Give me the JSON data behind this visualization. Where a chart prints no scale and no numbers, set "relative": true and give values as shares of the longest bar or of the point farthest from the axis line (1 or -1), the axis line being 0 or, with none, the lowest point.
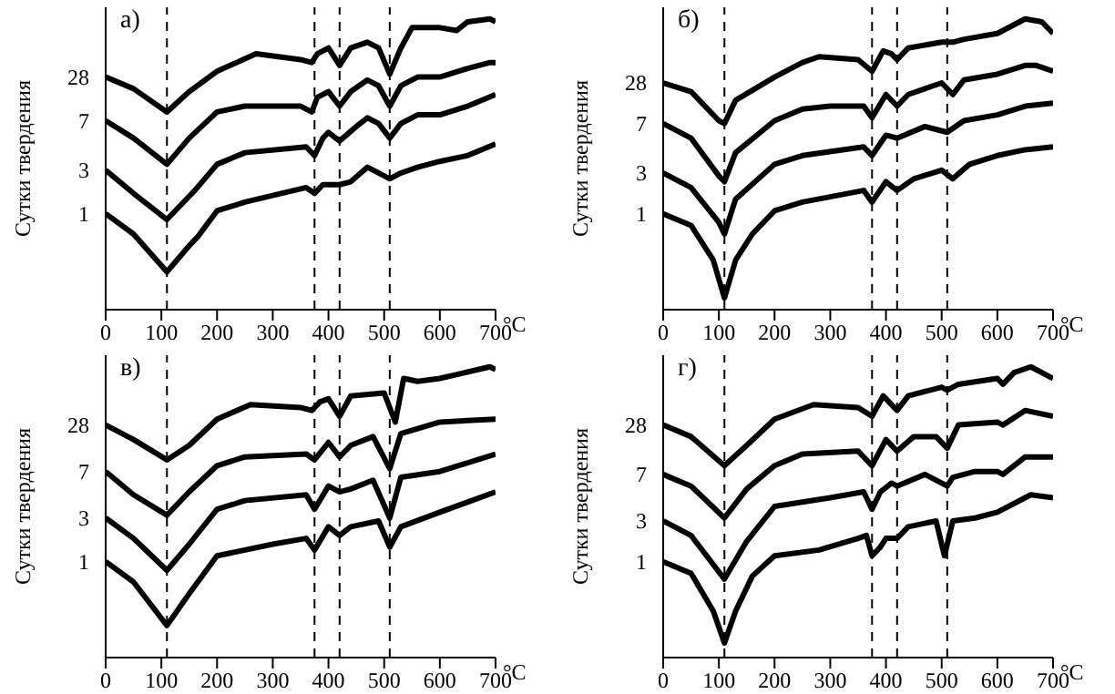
{
  "chart_data": [
    {
      "type": "line",
      "title": "а)",
      "xlabel": "°C",
      "ylabel": "Сутки твердения",
      "relative": true,
      "tick_labels": "x",
      "xlim": [
        0,
        700
      ],
      "xticks": [
        0,
        100,
        200,
        300,
        400,
        500,
        600,
        700
      ],
      "marker": "none",
      "line_style": "solid",
      "ref_lines": [
        {
          "axis": "x",
          "value": 110,
          "line_style": "dashed"
        },
        {
          "axis": "x",
          "value": 375,
          "line_style": "dashed"
        },
        {
          "axis": "x",
          "value": 420,
          "line_style": "dashed"
        },
        {
          "axis": "x",
          "value": 510,
          "line_style": "dashed"
        }
      ],
      "series": [
        {
          "name": "28",
          "color": "#000000",
          "x": [
            0,
            50,
            110,
            150,
            200,
            270,
            350,
            370,
            380,
            400,
            420,
            440,
            470,
            490,
            510,
            530,
            550,
            600,
            630,
            650,
            690,
            700
          ],
          "values": [
            0.8,
            0.76,
            0.68,
            0.75,
            0.82,
            0.88,
            0.86,
            0.85,
            0.88,
            0.9,
            0.84,
            0.9,
            0.92,
            0.9,
            0.81,
            0.9,
            0.97,
            0.97,
            0.96,
            0.99,
            1.0,
            0.99
          ]
        },
        {
          "name": "7",
          "color": "#000000",
          "x": [
            0,
            50,
            110,
            150,
            200,
            250,
            350,
            370,
            380,
            400,
            420,
            440,
            470,
            490,
            510,
            530,
            560,
            600,
            650,
            690,
            700
          ],
          "values": [
            0.65,
            0.59,
            0.5,
            0.59,
            0.68,
            0.7,
            0.7,
            0.68,
            0.73,
            0.75,
            0.7,
            0.75,
            0.79,
            0.77,
            0.7,
            0.77,
            0.8,
            0.8,
            0.83,
            0.85,
            0.85
          ]
        },
        {
          "name": "3",
          "color": "#000000",
          "x": [
            0,
            50,
            110,
            150,
            160,
            200,
            250,
            360,
            375,
            390,
            400,
            420,
            450,
            470,
            490,
            510,
            530,
            560,
            600,
            650,
            700
          ],
          "values": [
            0.48,
            0.4,
            0.31,
            0.39,
            0.41,
            0.5,
            0.54,
            0.56,
            0.53,
            0.59,
            0.61,
            0.58,
            0.63,
            0.66,
            0.64,
            0.59,
            0.64,
            0.67,
            0.67,
            0.7,
            0.74
          ]
        },
        {
          "name": "1",
          "color": "#000000",
          "x": [
            0,
            50,
            110,
            150,
            165,
            200,
            250,
            360,
            375,
            390,
            420,
            440,
            470,
            490,
            510,
            530,
            560,
            600,
            650,
            700
          ],
          "values": [
            0.33,
            0.26,
            0.13,
            0.22,
            0.25,
            0.34,
            0.37,
            0.42,
            0.4,
            0.43,
            0.43,
            0.44,
            0.49,
            0.47,
            0.45,
            0.47,
            0.49,
            0.51,
            0.53,
            0.57
          ]
        }
      ]
    },
    {
      "type": "line",
      "title": "б)",
      "xlabel": "°C",
      "ylabel": "Сутки твердения",
      "relative": true,
      "tick_labels": "x",
      "xlim": [
        0,
        700
      ],
      "xticks": [
        0,
        100,
        200,
        300,
        400,
        500,
        600,
        700
      ],
      "marker": "none",
      "line_style": "solid",
      "ref_lines": [
        {
          "axis": "x",
          "value": 110,
          "line_style": "dashed"
        },
        {
          "axis": "x",
          "value": 375,
          "line_style": "dashed"
        },
        {
          "axis": "x",
          "value": 420,
          "line_style": "dashed"
        },
        {
          "axis": "x",
          "value": 510,
          "line_style": "dashed"
        }
      ],
      "series": [
        {
          "name": "28",
          "color": "#000000",
          "x": [
            0,
            50,
            100,
            110,
            130,
            200,
            250,
            280,
            350,
            375,
            395,
            410,
            420,
            440,
            500,
            520,
            540,
            600,
            650,
            680,
            700
          ],
          "values": [
            0.78,
            0.75,
            0.65,
            0.64,
            0.72,
            0.8,
            0.85,
            0.87,
            0.86,
            0.82,
            0.89,
            0.88,
            0.86,
            0.9,
            0.92,
            0.92,
            0.93,
            0.95,
            1.0,
            0.99,
            0.95
          ]
        },
        {
          "name": "7",
          "color": "#000000",
          "x": [
            0,
            50,
            100,
            110,
            130,
            200,
            250,
            300,
            360,
            375,
            400,
            420,
            440,
            500,
            520,
            540,
            600,
            650,
            670,
            700
          ],
          "values": [
            0.64,
            0.59,
            0.46,
            0.44,
            0.54,
            0.65,
            0.69,
            0.7,
            0.7,
            0.66,
            0.74,
            0.7,
            0.74,
            0.78,
            0.74,
            0.79,
            0.81,
            0.84,
            0.84,
            0.82
          ]
        },
        {
          "name": "3",
          "color": "#000000",
          "x": [
            0,
            50,
            100,
            110,
            130,
            200,
            250,
            360,
            375,
            400,
            420,
            470,
            510,
            540,
            600,
            650,
            700
          ],
          "values": [
            0.47,
            0.42,
            0.3,
            0.26,
            0.38,
            0.5,
            0.53,
            0.56,
            0.53,
            0.6,
            0.59,
            0.63,
            0.61,
            0.65,
            0.67,
            0.7,
            0.71
          ]
        },
        {
          "name": "1",
          "color": "#000000",
          "x": [
            0,
            50,
            90,
            110,
            130,
            160,
            200,
            250,
            360,
            375,
            400,
            420,
            450,
            500,
            520,
            550,
            600,
            650,
            700
          ],
          "values": [
            0.33,
            0.29,
            0.17,
            0.04,
            0.17,
            0.26,
            0.34,
            0.37,
            0.41,
            0.37,
            0.44,
            0.41,
            0.45,
            0.48,
            0.45,
            0.5,
            0.53,
            0.55,
            0.56
          ]
        }
      ]
    },
    {
      "type": "line",
      "title": "в)",
      "xlabel": "°C",
      "ylabel": "Сутки твердения",
      "relative": true,
      "tick_labels": "x",
      "xlim": [
        0,
        700
      ],
      "xticks": [
        0,
        100,
        200,
        300,
        400,
        500,
        600,
        700
      ],
      "marker": "none",
      "line_style": "solid",
      "ref_lines": [
        {
          "axis": "x",
          "value": 110,
          "line_style": "dashed"
        },
        {
          "axis": "x",
          "value": 375,
          "line_style": "dashed"
        },
        {
          "axis": "x",
          "value": 420,
          "line_style": "dashed"
        },
        {
          "axis": "x",
          "value": 510,
          "line_style": "dashed"
        }
      ],
      "series": [
        {
          "name": "28",
          "color": "#000000",
          "x": [
            0,
            50,
            110,
            150,
            200,
            260,
            350,
            370,
            385,
            400,
            420,
            440,
            500,
            510,
            520,
            535,
            560,
            600,
            690,
            700
          ],
          "values": [
            0.8,
            0.75,
            0.68,
            0.73,
            0.82,
            0.87,
            0.86,
            0.85,
            0.88,
            0.89,
            0.83,
            0.9,
            0.91,
            0.86,
            0.81,
            0.96,
            0.95,
            0.96,
            1.0,
            0.99
          ]
        },
        {
          "name": "7",
          "color": "#000000",
          "x": [
            0,
            50,
            110,
            150,
            200,
            250,
            360,
            375,
            400,
            420,
            440,
            480,
            510,
            530,
            600,
            700
          ],
          "values": [
            0.64,
            0.56,
            0.49,
            0.57,
            0.66,
            0.69,
            0.7,
            0.68,
            0.74,
            0.69,
            0.73,
            0.76,
            0.65,
            0.77,
            0.81,
            0.82
          ]
        },
        {
          "name": "3",
          "color": "#000000",
          "x": [
            0,
            50,
            110,
            150,
            200,
            250,
            360,
            375,
            400,
            420,
            440,
            480,
            510,
            530,
            600,
            700
          ],
          "values": [
            0.48,
            0.41,
            0.3,
            0.39,
            0.51,
            0.54,
            0.56,
            0.51,
            0.59,
            0.57,
            0.58,
            0.61,
            0.48,
            0.62,
            0.64,
            0.7
          ]
        },
        {
          "name": "1",
          "color": "#000000",
          "x": [
            0,
            50,
            110,
            150,
            200,
            300,
            360,
            375,
            400,
            420,
            440,
            490,
            510,
            530,
            600,
            700
          ],
          "values": [
            0.33,
            0.26,
            0.11,
            0.22,
            0.35,
            0.39,
            0.41,
            0.37,
            0.45,
            0.42,
            0.45,
            0.47,
            0.38,
            0.45,
            0.5,
            0.57
          ]
        }
      ]
    },
    {
      "type": "line",
      "title": "г)",
      "xlabel": "°C",
      "ylabel": "Сутки твердения",
      "relative": true,
      "tick_labels": "x",
      "xlim": [
        0,
        700
      ],
      "xticks": [
        0,
        100,
        200,
        300,
        400,
        500,
        600,
        700
      ],
      "marker": "none",
      "line_style": "solid",
      "ref_lines": [
        {
          "axis": "x",
          "value": 110,
          "line_style": "dashed"
        },
        {
          "axis": "x",
          "value": 375,
          "line_style": "dashed"
        },
        {
          "axis": "x",
          "value": 420,
          "line_style": "dashed"
        },
        {
          "axis": "x",
          "value": 510,
          "line_style": "dashed"
        }
      ],
      "series": [
        {
          "name": "28",
          "color": "#000000",
          "x": [
            0,
            50,
            110,
            150,
            200,
            270,
            350,
            375,
            395,
            420,
            440,
            500,
            510,
            530,
            600,
            610,
            630,
            660,
            700
          ],
          "values": [
            0.8,
            0.76,
            0.66,
            0.73,
            0.82,
            0.87,
            0.86,
            0.83,
            0.9,
            0.85,
            0.9,
            0.93,
            0.92,
            0.94,
            0.96,
            0.94,
            0.98,
            1.0,
            0.96
          ]
        },
        {
          "name": "7",
          "color": "#000000",
          "x": [
            0,
            50,
            110,
            150,
            200,
            250,
            350,
            375,
            400,
            420,
            450,
            490,
            510,
            530,
            600,
            610,
            650,
            700
          ],
          "values": [
            0.63,
            0.59,
            0.48,
            0.58,
            0.66,
            0.7,
            0.71,
            0.66,
            0.75,
            0.71,
            0.76,
            0.76,
            0.72,
            0.8,
            0.81,
            0.8,
            0.85,
            0.83
          ]
        },
        {
          "name": "3",
          "color": "#000000",
          "x": [
            0,
            50,
            110,
            150,
            200,
            300,
            360,
            375,
            390,
            410,
            420,
            470,
            510,
            520,
            560,
            600,
            610,
            650,
            700
          ],
          "values": [
            0.47,
            0.42,
            0.27,
            0.4,
            0.52,
            0.55,
            0.57,
            0.51,
            0.57,
            0.6,
            0.59,
            0.63,
            0.59,
            0.62,
            0.64,
            0.64,
            0.63,
            0.69,
            0.69
          ]
        },
        {
          "name": "1",
          "color": "#000000",
          "x": [
            0,
            50,
            90,
            110,
            130,
            160,
            200,
            280,
            350,
            365,
            375,
            390,
            400,
            420,
            440,
            490,
            505,
            520,
            560,
            600,
            660,
            700
          ],
          "values": [
            0.33,
            0.29,
            0.16,
            0.05,
            0.16,
            0.28,
            0.35,
            0.37,
            0.41,
            0.42,
            0.35,
            0.38,
            0.41,
            0.41,
            0.45,
            0.47,
            0.35,
            0.47,
            0.48,
            0.5,
            0.56,
            0.55
          ]
        }
      ]
    }
  ]
}
